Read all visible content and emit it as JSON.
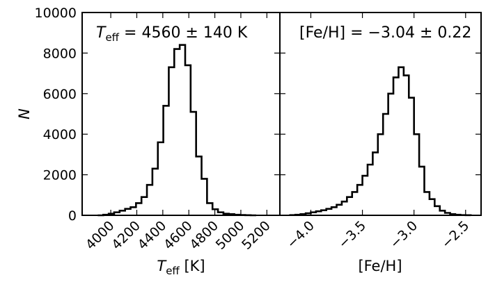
{
  "chart_data": [
    {
      "type": "histogram",
      "panel": "left",
      "xlabel": "T",
      "xlabel_sub": "eff",
      "xlabel_unit": " [K]",
      "ylabel": "N",
      "xlim": [
        3780,
        5300
      ],
      "ylim": [
        0,
        10000
      ],
      "xticks": [
        "4000",
        "4200",
        "4400",
        "4600",
        "4800",
        "5000",
        "5200"
      ],
      "yticks": [
        "0",
        "2000",
        "4000",
        "6000",
        "8000",
        "10000"
      ],
      "annotation": {
        "symbol": "T",
        "sub": "eff",
        "text": " = 4560 ± 140 K"
      },
      "bin_edges": [
        3900,
        3942,
        3984,
        4026,
        4068,
        4110,
        4152,
        4194,
        4236,
        4278,
        4320,
        4362,
        4404,
        4446,
        4488,
        4530,
        4572,
        4614,
        4656,
        4698,
        4740,
        4782,
        4824,
        4866,
        4908,
        4950,
        4992,
        5034,
        5076,
        5118
      ],
      "counts": [
        0,
        30,
        80,
        150,
        230,
        320,
        400,
        600,
        900,
        1500,
        2300,
        3600,
        5400,
        7300,
        8200,
        8400,
        7400,
        5100,
        2900,
        1800,
        600,
        300,
        150,
        80,
        60,
        30,
        15,
        5,
        0
      ]
    },
    {
      "type": "histogram",
      "panel": "right",
      "xlabel": "[Fe/H]",
      "xlim": [
        -4.3,
        -2.35
      ],
      "ylim": [
        0,
        10000
      ],
      "xticks": [
        "−4.0",
        "−3.5",
        "−3.0",
        "−2.5"
      ],
      "annotation": {
        "text": "[Fe/H] = −3.04 ± 0.22"
      },
      "bin_edges": [
        -4.2,
        -4.15,
        -4.1,
        -4.05,
        -4.0,
        -3.95,
        -3.9,
        -3.85,
        -3.8,
        -3.75,
        -3.7,
        -3.65,
        -3.6,
        -3.55,
        -3.5,
        -3.45,
        -3.4,
        -3.35,
        -3.3,
        -3.25,
        -3.2,
        -3.15,
        -3.1,
        -3.05,
        -3.0,
        -2.95,
        -2.9,
        -2.85,
        -2.8,
        -2.75,
        -2.7,
        -2.65,
        -2.6,
        -2.55,
        -2.5,
        -2.45
      ],
      "counts": [
        10,
        30,
        60,
        100,
        150,
        200,
        250,
        320,
        400,
        520,
        680,
        900,
        1150,
        1500,
        1950,
        2500,
        3100,
        4000,
        5000,
        6000,
        6800,
        7300,
        6900,
        5800,
        4000,
        2400,
        1150,
        800,
        450,
        230,
        120,
        60,
        30,
        10,
        5
      ]
    }
  ]
}
